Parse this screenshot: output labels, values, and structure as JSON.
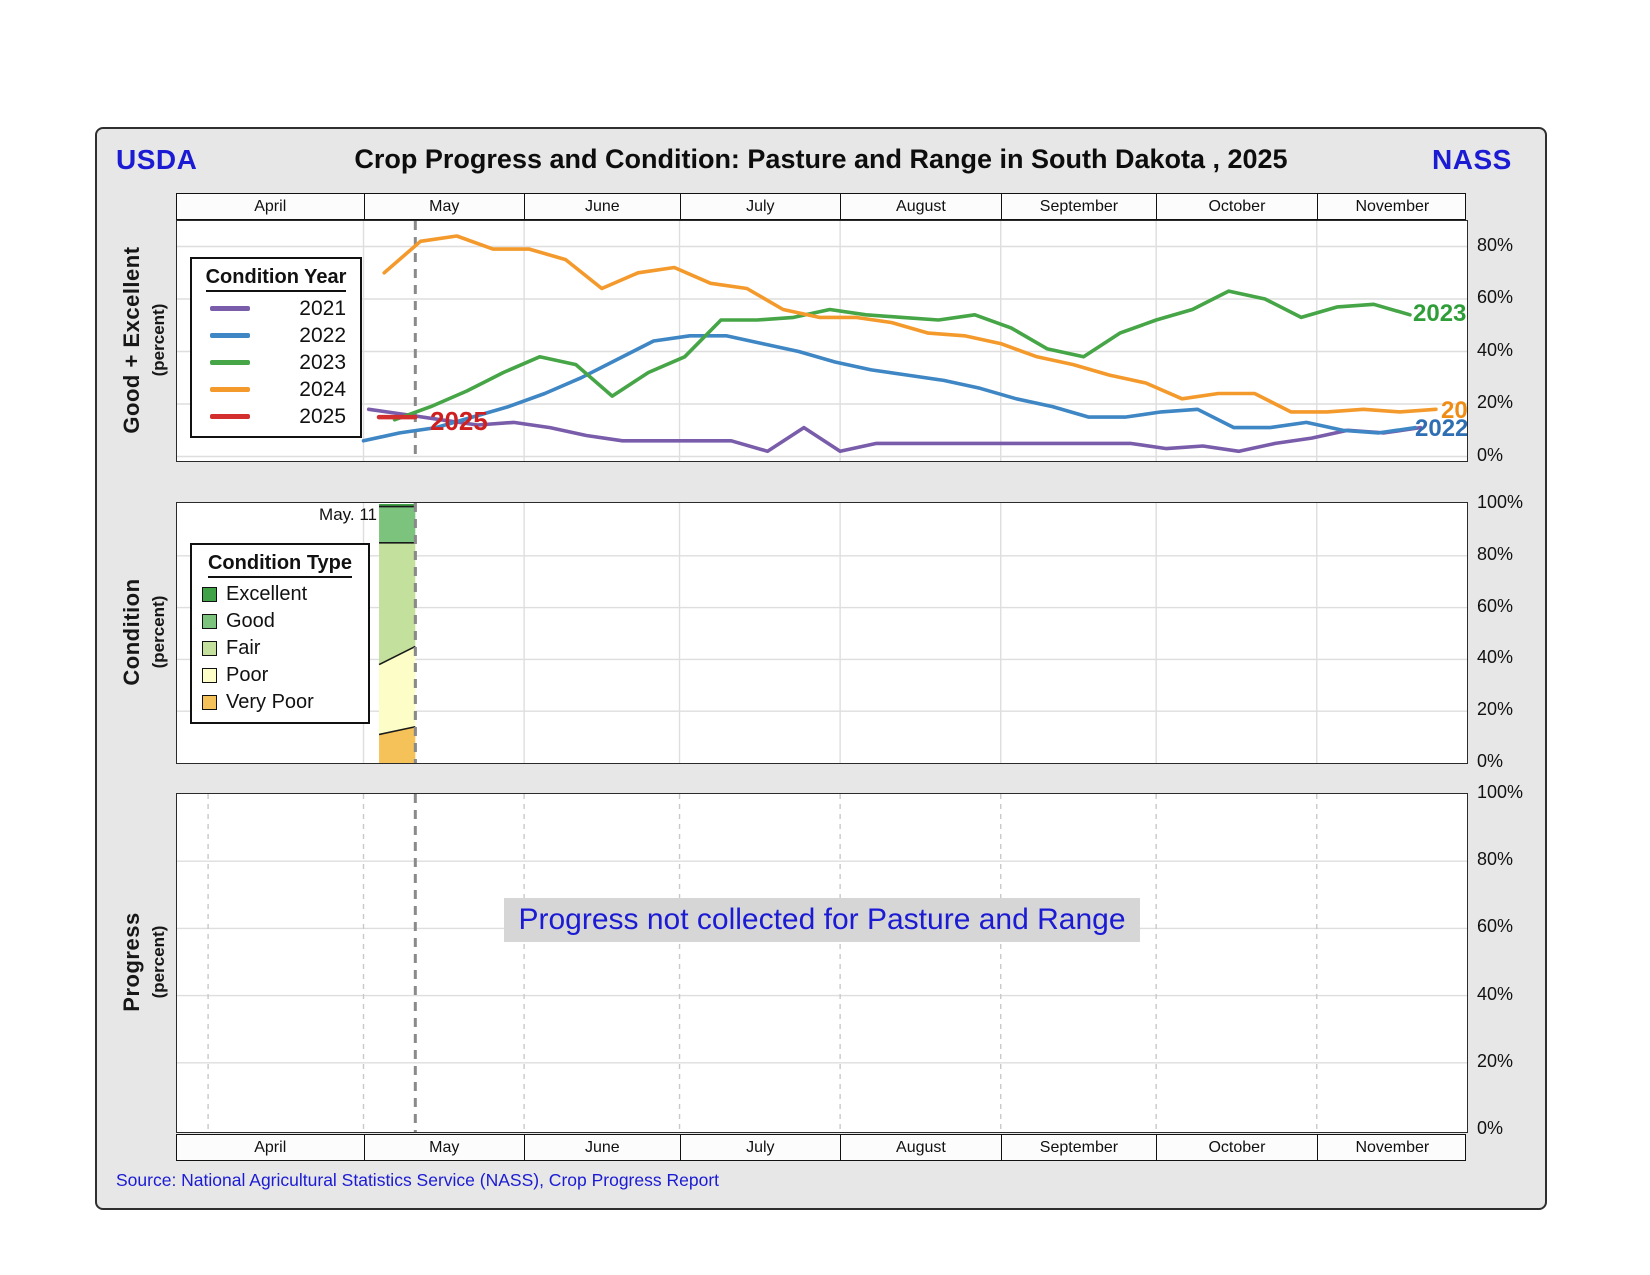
{
  "header": {
    "left_logo": "USDA",
    "right_logo": "NASS",
    "title": "Crop Progress and Condition: Pasture and Range in South Dakota , 2025"
  },
  "source_note": "Source: National Agricultural Statistics Service (NASS), Crop Progress Report",
  "months": [
    "April",
    "May",
    "June",
    "July",
    "August",
    "September",
    "October",
    "November"
  ],
  "reference_date": "May 11",
  "top_chart": {
    "axis_title": "Good + Excellent",
    "axis_subtitle": "(percent)",
    "legend_title": "Condition Year",
    "annotation": "2025",
    "end_label_2023": "2023",
    "end_label_2024": "20",
    "end_label_2022": "2022",
    "y_ticks": [
      "80%",
      "60%",
      "40%",
      "20%",
      "0%"
    ]
  },
  "middle_chart": {
    "axis_title": "Condition",
    "axis_subtitle": "(percent)",
    "legend_title": "Condition Type",
    "week_label": "May. 11",
    "y_ticks": [
      "100%",
      "80%",
      "60%",
      "40%",
      "20%",
      "0%"
    ]
  },
  "bottom_chart": {
    "axis_title": "Progress",
    "axis_subtitle": "(percent)",
    "message": "Progress not collected for Pasture and Range",
    "y_ticks": [
      "100%",
      "80%",
      "60%",
      "40%",
      "20%",
      "0%"
    ]
  },
  "colors": {
    "accent_blue": "#1b1bd4",
    "y2021": "#7a5daa",
    "y2022": "#3e86c4",
    "y2023": "#46a546",
    "y2024": "#f49a2c",
    "y2025": "#d32f2f",
    "excellent": "#3fa246",
    "good": "#7cc47d",
    "fair": "#c3e09c",
    "poor": "#fdfdc8",
    "very_poor": "#f5c259",
    "grid": "#dedede",
    "dashed_ref": "#8a8a8a"
  },
  "chart_data": [
    {
      "type": "line",
      "title": "Good + Excellent (percent)",
      "ylabel": "Good + Excellent (percent)",
      "ylim": [
        0,
        100
      ],
      "grid": true,
      "legend_position": "upper left",
      "x_range": "late March through November, weekly",
      "series": [
        {
          "name": "2021",
          "color_key": "y2021",
          "dates": [
            "May 2",
            "May 9",
            "May 16",
            "May 23",
            "May 30",
            "Jun 6",
            "Jun 13",
            "Jun 20",
            "Jun 27",
            "Jul 4",
            "Jul 11",
            "Jul 18",
            "Jul 25",
            "Aug 1",
            "Aug 8",
            "Aug 15",
            "Aug 22",
            "Aug 29",
            "Sep 5",
            "Sep 12",
            "Sep 19",
            "Sep 26",
            "Oct 3",
            "Oct 10",
            "Oct 17",
            "Oct 24",
            "Oct 31",
            "Nov 7",
            "Nov 14",
            "Nov 21"
          ],
          "values": [
            18,
            16,
            14,
            12,
            13,
            11,
            8,
            6,
            6,
            6,
            6,
            2,
            11,
            2,
            5,
            5,
            5,
            5,
            5,
            5,
            5,
            5,
            3,
            4,
            2,
            5,
            7,
            10,
            9,
            11
          ]
        },
        {
          "name": "2022",
          "color_key": "y2022",
          "dates": [
            "May 1",
            "May 8",
            "May 15",
            "May 22",
            "May 29",
            "Jun 5",
            "Jun 12",
            "Jun 19",
            "Jun 26",
            "Jul 3",
            "Jul 10",
            "Jul 17",
            "Jul 24",
            "Jul 31",
            "Aug 7",
            "Aug 14",
            "Aug 21",
            "Aug 28",
            "Sep 4",
            "Sep 11",
            "Sep 18",
            "Sep 25",
            "Oct 2",
            "Oct 9",
            "Oct 16",
            "Oct 23",
            "Oct 30",
            "Nov 6",
            "Nov 13",
            "Nov 20"
          ],
          "values": [
            6,
            9,
            11,
            15,
            19,
            24,
            30,
            37,
            44,
            46,
            46,
            43,
            40,
            36,
            33,
            31,
            29,
            26,
            22,
            19,
            15,
            15,
            17,
            18,
            11,
            11,
            13,
            10,
            9,
            11
          ]
        },
        {
          "name": "2023",
          "color_key": "y2023",
          "dates": [
            "May 7",
            "May 14",
            "May 21",
            "May 28",
            "Jun 4",
            "Jun 11",
            "Jun 18",
            "Jun 25",
            "Jul 2",
            "Jul 9",
            "Jul 16",
            "Jul 23",
            "Jul 30",
            "Aug 6",
            "Aug 13",
            "Aug 20",
            "Aug 27",
            "Sep 3",
            "Sep 10",
            "Sep 17",
            "Sep 24",
            "Oct 1",
            "Oct 8",
            "Oct 15",
            "Oct 22",
            "Oct 29",
            "Nov 5",
            "Nov 12",
            "Nov 19"
          ],
          "values": [
            14,
            19,
            25,
            32,
            38,
            35,
            23,
            32,
            38,
            52,
            52,
            53,
            56,
            54,
            53,
            52,
            54,
            49,
            41,
            38,
            47,
            52,
            56,
            63,
            60,
            53,
            57,
            58,
            54
          ]
        },
        {
          "name": "2024",
          "color_key": "y2024",
          "dates": [
            "May 5",
            "May 12",
            "May 19",
            "May 26",
            "Jun 2",
            "Jun 9",
            "Jun 16",
            "Jun 23",
            "Jun 30",
            "Jul 7",
            "Jul 14",
            "Jul 21",
            "Jul 28",
            "Aug 4",
            "Aug 11",
            "Aug 18",
            "Aug 25",
            "Sep 1",
            "Sep 8",
            "Sep 15",
            "Sep 22",
            "Sep 29",
            "Oct 6",
            "Oct 13",
            "Oct 20",
            "Oct 27",
            "Nov 3",
            "Nov 10",
            "Nov 17",
            "Nov 24"
          ],
          "values": [
            70,
            82,
            84,
            79,
            79,
            75,
            64,
            70,
            72,
            66,
            64,
            56,
            53,
            53,
            51,
            47,
            46,
            43,
            38,
            35,
            31,
            28,
            22,
            24,
            24,
            17,
            17,
            18,
            17,
            18
          ]
        },
        {
          "name": "2025",
          "color_key": "y2025",
          "dates": [
            "May 4",
            "May 11"
          ],
          "values": [
            15,
            15
          ]
        }
      ]
    },
    {
      "type": "area",
      "title": "Condition (percent)",
      "stacked": true,
      "ylim": [
        0,
        100
      ],
      "weeks": [
        "May 4",
        "May 11"
      ],
      "series": [
        {
          "name": "Very Poor",
          "color_key": "very_poor",
          "values": [
            11,
            14
          ]
        },
        {
          "name": "Poor",
          "color_key": "poor",
          "values": [
            27,
            31
          ]
        },
        {
          "name": "Fair",
          "color_key": "fair",
          "values": [
            47,
            40
          ]
        },
        {
          "name": "Good",
          "color_key": "good",
          "values": [
            14,
            14
          ]
        },
        {
          "name": "Excellent",
          "color_key": "excellent",
          "values": [
            1,
            1
          ]
        }
      ]
    },
    {
      "type": "none",
      "title": "Progress (percent)",
      "note": "Progress not collected for Pasture and Range"
    }
  ]
}
